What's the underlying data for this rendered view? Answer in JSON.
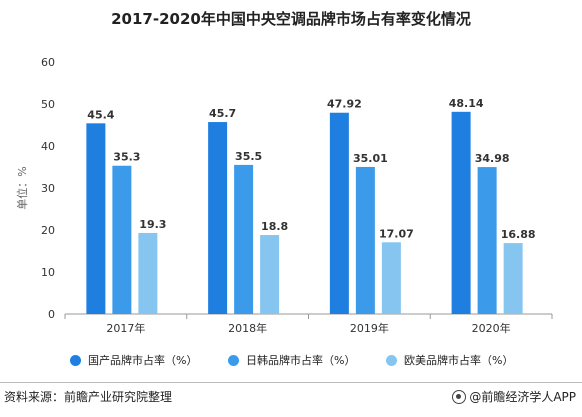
{
  "chart_data": {
    "type": "bar",
    "title": "2017-2020年中国中央空调品牌市场占有率变化情况",
    "ylabel": "单位：%",
    "xlabel": "",
    "ylim": [
      0,
      60
    ],
    "yticks": [
      0,
      10,
      20,
      30,
      40,
      50,
      60
    ],
    "categories": [
      "2017年",
      "2018年",
      "2019年",
      "2020年"
    ],
    "grid": false,
    "legend_position": "bottom",
    "series": [
      {
        "name": "国产品牌市占率（%）",
        "color": "#1E7FE0",
        "values": [
          45.4,
          45.7,
          47.92,
          48.14
        ]
      },
      {
        "name": "日韩品牌市占率（%）",
        "color": "#3B9BEA",
        "values": [
          35.3,
          35.5,
          35.01,
          34.98
        ]
      },
      {
        "name": "欧美品牌市占率（%）",
        "color": "#86C5F0",
        "values": [
          19.3,
          18.8,
          17.07,
          16.88
        ]
      }
    ]
  },
  "footer": {
    "source": "资料来源：前瞻产业研究院整理",
    "brand": "@前瞻经济学人APP"
  },
  "colors": {
    "axis": "#999999",
    "label": "#333333"
  }
}
